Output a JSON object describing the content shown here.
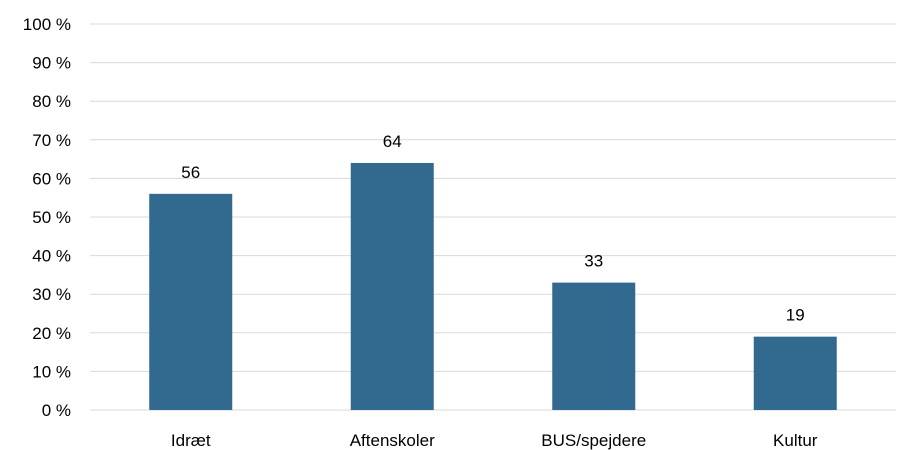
{
  "chart_data": {
    "type": "bar",
    "categories": [
      "Idræt",
      "Aftenskoler",
      "BUS/spejdere",
      "Kultur"
    ],
    "values": [
      56,
      64,
      33,
      19
    ],
    "data_labels": [
      "56",
      "64",
      "33",
      "19"
    ],
    "y_ticks": [
      0,
      10,
      20,
      30,
      40,
      50,
      60,
      70,
      80,
      90,
      100
    ],
    "y_tick_labels": [
      "0 %",
      "10 %",
      "20 %",
      "30 %",
      "40 %",
      "50 %",
      "60 %",
      "70 %",
      "80 %",
      "90 %",
      "100 %"
    ],
    "ylim": [
      0,
      100
    ],
    "title": "",
    "xlabel": "",
    "ylabel": "",
    "grid": true,
    "legend": "none",
    "colors": {
      "bar": "#31698F",
      "grid": "#D9D9D9",
      "text": "#000000"
    }
  }
}
